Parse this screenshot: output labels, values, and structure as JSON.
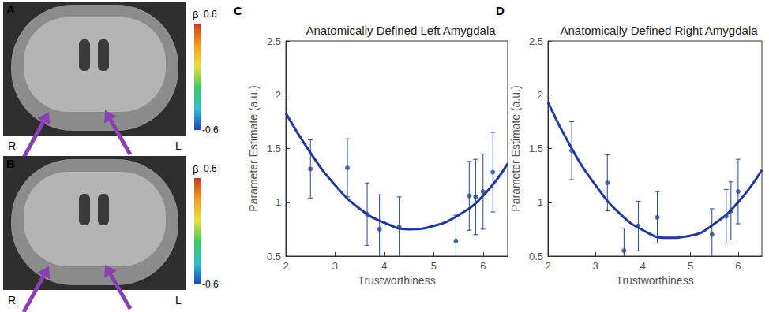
{
  "brain_panels": [
    {
      "panel": "A",
      "hemisphere_labels": [
        "R",
        "L"
      ],
      "colorbar": {
        "label": "β",
        "range": [
          -0.6,
          0.6
        ],
        "ticks": [
          -0.6,
          0.6
        ]
      }
    },
    {
      "panel": "B",
      "hemisphere_labels": [
        "R",
        "L"
      ],
      "colorbar": {
        "label": "β",
        "range": [
          -0.6,
          0.6
        ],
        "ticks": [
          -0.6,
          0.6
        ]
      }
    }
  ],
  "chart_data": [
    {
      "panel": "C",
      "type": "scatter",
      "title": "Anatomically Defined Left Amygdala",
      "x_label": "Trustworthiness",
      "y_label": "Parameter Estimate (a.u.)",
      "xlim": [
        2,
        6.5
      ],
      "xticks": [
        2,
        3,
        4,
        5,
        6
      ],
      "ylim": [
        0.5,
        2.5
      ],
      "yticks": [
        0.5,
        1,
        1.5,
        2,
        2.5
      ],
      "grid": false,
      "series": [
        {
          "type": "scatter",
          "marker": "circle",
          "color": "#2b4597",
          "x": [
            2.5,
            3.25,
            3.65,
            3.9,
            4.3,
            5.45,
            5.72,
            5.85,
            6.0,
            6.2
          ],
          "values": [
            1.31,
            1.32,
            0.89,
            0.75,
            0.77,
            0.64,
            1.06,
            1.05,
            1.1,
            1.28
          ],
          "errors": [
            0.27,
            0.27,
            0.29,
            0.32,
            0.28,
            0.24,
            0.32,
            0.35,
            0.35,
            0.37
          ]
        },
        {
          "type": "line",
          "line_style": "solid",
          "color": "#22389c",
          "x": [
            2,
            2.5,
            3,
            3.5,
            4,
            4.5,
            5,
            5.5,
            6,
            6.5
          ],
          "values": [
            1.83,
            1.46,
            1.16,
            0.94,
            0.81,
            0.75,
            0.78,
            0.88,
            1.06,
            1.36
          ]
        }
      ]
    },
    {
      "panel": "D",
      "type": "scatter",
      "title": "Anatomically Defined Right Amygdala",
      "x_label": "Trustworthiness",
      "y_label": "Parameter Estimate (a.u.)",
      "xlim": [
        2,
        6.5
      ],
      "xticks": [
        2,
        3,
        4,
        5,
        6
      ],
      "ylim": [
        0.5,
        2.5
      ],
      "yticks": [
        0.5,
        1,
        1.5,
        2,
        2.5
      ],
      "grid": false,
      "series": [
        {
          "type": "scatter",
          "marker": "circle",
          "color": "#2b4597",
          "x": [
            2.5,
            3.25,
            3.6,
            3.9,
            4.3,
            5.45,
            5.75,
            5.85,
            6.0
          ],
          "values": [
            1.48,
            1.18,
            0.55,
            0.78,
            0.86,
            0.7,
            0.87,
            0.92,
            1.1
          ],
          "errors": [
            0.27,
            0.26,
            0.21,
            0.23,
            0.24,
            0.24,
            0.25,
            0.27,
            0.3
          ]
        },
        {
          "type": "line",
          "line_style": "solid",
          "color": "#22389c",
          "x": [
            2,
            2.5,
            3,
            3.5,
            4,
            4.5,
            5,
            5.5,
            6,
            6.5
          ],
          "values": [
            1.93,
            1.5,
            1.16,
            0.9,
            0.74,
            0.67,
            0.69,
            0.8,
            1.0,
            1.3
          ]
        }
      ]
    }
  ]
}
